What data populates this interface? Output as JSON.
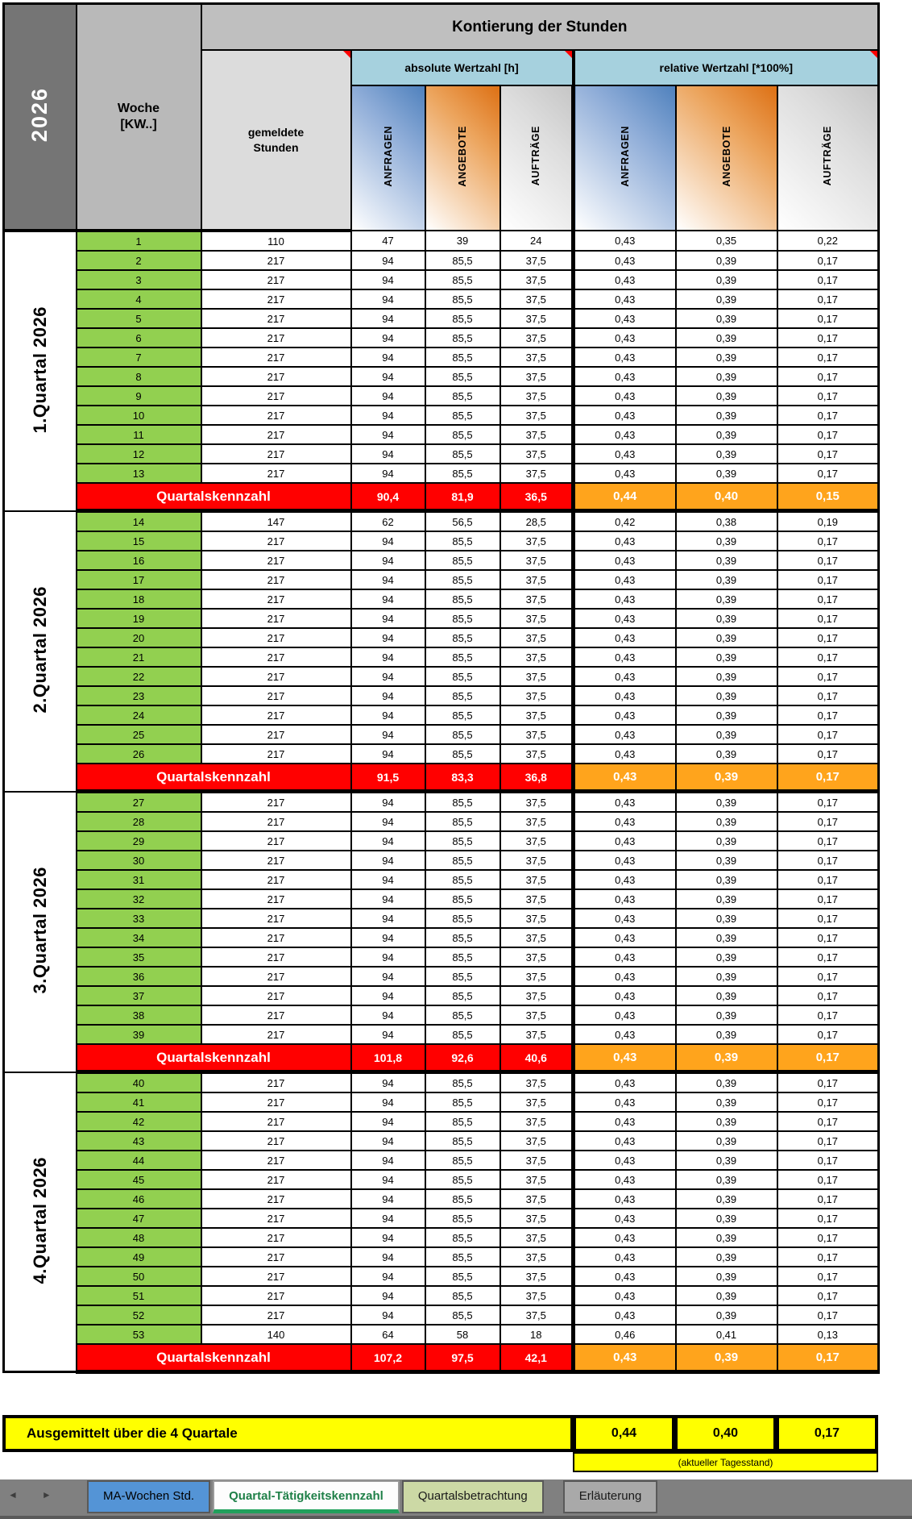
{
  "year": "2026",
  "header": {
    "title": "Kontierung der Stunden",
    "week_label": "Woche",
    "week_sub": "[KW..]",
    "reported": "gemeldete Stunden",
    "abs_group": "absolute Wertzahl [h]",
    "rel_group": "relative Wertzahl [*100%]",
    "metrics": [
      "ANFRAGEN",
      "ANGEBOTE",
      "AUFTRÄGE"
    ]
  },
  "quarters": [
    {
      "label": "1.Quartal 2026",
      "weeks": [
        [
          "1",
          "110",
          "47",
          "39",
          "24",
          "0,43",
          "0,35",
          "0,22"
        ],
        [
          "2",
          "217",
          "94",
          "85,5",
          "37,5",
          "0,43",
          "0,39",
          "0,17"
        ],
        [
          "3",
          "217",
          "94",
          "85,5",
          "37,5",
          "0,43",
          "0,39",
          "0,17"
        ],
        [
          "4",
          "217",
          "94",
          "85,5",
          "37,5",
          "0,43",
          "0,39",
          "0,17"
        ],
        [
          "5",
          "217",
          "94",
          "85,5",
          "37,5",
          "0,43",
          "0,39",
          "0,17"
        ],
        [
          "6",
          "217",
          "94",
          "85,5",
          "37,5",
          "0,43",
          "0,39",
          "0,17"
        ],
        [
          "7",
          "217",
          "94",
          "85,5",
          "37,5",
          "0,43",
          "0,39",
          "0,17"
        ],
        [
          "8",
          "217",
          "94",
          "85,5",
          "37,5",
          "0,43",
          "0,39",
          "0,17"
        ],
        [
          "9",
          "217",
          "94",
          "85,5",
          "37,5",
          "0,43",
          "0,39",
          "0,17"
        ],
        [
          "10",
          "217",
          "94",
          "85,5",
          "37,5",
          "0,43",
          "0,39",
          "0,17"
        ],
        [
          "11",
          "217",
          "94",
          "85,5",
          "37,5",
          "0,43",
          "0,39",
          "0,17"
        ],
        [
          "12",
          "217",
          "94",
          "85,5",
          "37,5",
          "0,43",
          "0,39",
          "0,17"
        ],
        [
          "13",
          "217",
          "94",
          "85,5",
          "37,5",
          "0,43",
          "0,39",
          "0,17"
        ]
      ],
      "summary_label": "Quartalskennzahl",
      "summary_abs": [
        "90,4",
        "81,9",
        "36,5"
      ],
      "summary_rel": [
        "0,44",
        "0,40",
        "0,15"
      ]
    },
    {
      "label": "2.Quartal 2026",
      "weeks": [
        [
          "14",
          "147",
          "62",
          "56,5",
          "28,5",
          "0,42",
          "0,38",
          "0,19"
        ],
        [
          "15",
          "217",
          "94",
          "85,5",
          "37,5",
          "0,43",
          "0,39",
          "0,17"
        ],
        [
          "16",
          "217",
          "94",
          "85,5",
          "37,5",
          "0,43",
          "0,39",
          "0,17"
        ],
        [
          "17",
          "217",
          "94",
          "85,5",
          "37,5",
          "0,43",
          "0,39",
          "0,17"
        ],
        [
          "18",
          "217",
          "94",
          "85,5",
          "37,5",
          "0,43",
          "0,39",
          "0,17"
        ],
        [
          "19",
          "217",
          "94",
          "85,5",
          "37,5",
          "0,43",
          "0,39",
          "0,17"
        ],
        [
          "20",
          "217",
          "94",
          "85,5",
          "37,5",
          "0,43",
          "0,39",
          "0,17"
        ],
        [
          "21",
          "217",
          "94",
          "85,5",
          "37,5",
          "0,43",
          "0,39",
          "0,17"
        ],
        [
          "22",
          "217",
          "94",
          "85,5",
          "37,5",
          "0,43",
          "0,39",
          "0,17"
        ],
        [
          "23",
          "217",
          "94",
          "85,5",
          "37,5",
          "0,43",
          "0,39",
          "0,17"
        ],
        [
          "24",
          "217",
          "94",
          "85,5",
          "37,5",
          "0,43",
          "0,39",
          "0,17"
        ],
        [
          "25",
          "217",
          "94",
          "85,5",
          "37,5",
          "0,43",
          "0,39",
          "0,17"
        ],
        [
          "26",
          "217",
          "94",
          "85,5",
          "37,5",
          "0,43",
          "0,39",
          "0,17"
        ]
      ],
      "summary_label": "Quartalskennzahl",
      "summary_abs": [
        "91,5",
        "83,3",
        "36,8"
      ],
      "summary_rel": [
        "0,43",
        "0,39",
        "0,17"
      ]
    },
    {
      "label": "3.Quartal 2026",
      "weeks": [
        [
          "27",
          "217",
          "94",
          "85,5",
          "37,5",
          "0,43",
          "0,39",
          "0,17"
        ],
        [
          "28",
          "217",
          "94",
          "85,5",
          "37,5",
          "0,43",
          "0,39",
          "0,17"
        ],
        [
          "29",
          "217",
          "94",
          "85,5",
          "37,5",
          "0,43",
          "0,39",
          "0,17"
        ],
        [
          "30",
          "217",
          "94",
          "85,5",
          "37,5",
          "0,43",
          "0,39",
          "0,17"
        ],
        [
          "31",
          "217",
          "94",
          "85,5",
          "37,5",
          "0,43",
          "0,39",
          "0,17"
        ],
        [
          "32",
          "217",
          "94",
          "85,5",
          "37,5",
          "0,43",
          "0,39",
          "0,17"
        ],
        [
          "33",
          "217",
          "94",
          "85,5",
          "37,5",
          "0,43",
          "0,39",
          "0,17"
        ],
        [
          "34",
          "217",
          "94",
          "85,5",
          "37,5",
          "0,43",
          "0,39",
          "0,17"
        ],
        [
          "35",
          "217",
          "94",
          "85,5",
          "37,5",
          "0,43",
          "0,39",
          "0,17"
        ],
        [
          "36",
          "217",
          "94",
          "85,5",
          "37,5",
          "0,43",
          "0,39",
          "0,17"
        ],
        [
          "37",
          "217",
          "94",
          "85,5",
          "37,5",
          "0,43",
          "0,39",
          "0,17"
        ],
        [
          "38",
          "217",
          "94",
          "85,5",
          "37,5",
          "0,43",
          "0,39",
          "0,17"
        ],
        [
          "39",
          "217",
          "94",
          "85,5",
          "37,5",
          "0,43",
          "0,39",
          "0,17"
        ]
      ],
      "summary_label": "Quartalskennzahl",
      "summary_abs": [
        "101,8",
        "92,6",
        "40,6"
      ],
      "summary_rel": [
        "0,43",
        "0,39",
        "0,17"
      ]
    },
    {
      "label": "4.Quartal 2026",
      "weeks": [
        [
          "40",
          "217",
          "94",
          "85,5",
          "37,5",
          "0,43",
          "0,39",
          "0,17"
        ],
        [
          "41",
          "217",
          "94",
          "85,5",
          "37,5",
          "0,43",
          "0,39",
          "0,17"
        ],
        [
          "42",
          "217",
          "94",
          "85,5",
          "37,5",
          "0,43",
          "0,39",
          "0,17"
        ],
        [
          "43",
          "217",
          "94",
          "85,5",
          "37,5",
          "0,43",
          "0,39",
          "0,17"
        ],
        [
          "44",
          "217",
          "94",
          "85,5",
          "37,5",
          "0,43",
          "0,39",
          "0,17"
        ],
        [
          "45",
          "217",
          "94",
          "85,5",
          "37,5",
          "0,43",
          "0,39",
          "0,17"
        ],
        [
          "46",
          "217",
          "94",
          "85,5",
          "37,5",
          "0,43",
          "0,39",
          "0,17"
        ],
        [
          "47",
          "217",
          "94",
          "85,5",
          "37,5",
          "0,43",
          "0,39",
          "0,17"
        ],
        [
          "48",
          "217",
          "94",
          "85,5",
          "37,5",
          "0,43",
          "0,39",
          "0,17"
        ],
        [
          "49",
          "217",
          "94",
          "85,5",
          "37,5",
          "0,43",
          "0,39",
          "0,17"
        ],
        [
          "50",
          "217",
          "94",
          "85,5",
          "37,5",
          "0,43",
          "0,39",
          "0,17"
        ],
        [
          "51",
          "217",
          "94",
          "85,5",
          "37,5",
          "0,43",
          "0,39",
          "0,17"
        ],
        [
          "52",
          "217",
          "94",
          "85,5",
          "37,5",
          "0,43",
          "0,39",
          "0,17"
        ],
        [
          "53",
          "140",
          "64",
          "58",
          "18",
          "0,46",
          "0,41",
          "0,13"
        ]
      ],
      "summary_label": "Quartalskennzahl",
      "summary_abs": [
        "107,2",
        "97,5",
        "42,1"
      ],
      "summary_rel": [
        "0,43",
        "0,39",
        "0,17"
      ]
    }
  ],
  "footer": {
    "label": "Ausgemittelt über die 4 Quartale",
    "values": [
      "0,44",
      "0,40",
      "0,17"
    ],
    "note": "(aktueller Tagesstand)"
  },
  "tabbar": {
    "scroll_left": "◄",
    "scroll_right": "►",
    "tabs": [
      {
        "label": "MA-Wochen Std.",
        "style": "blue",
        "active": false
      },
      {
        "label": "Quartal-Tätigkeitskennzahl",
        "style": "active",
        "active": true
      },
      {
        "label": "Quartalsbetrachtung",
        "style": "green",
        "active": false
      },
      {
        "label": "Erläuterung",
        "style": "gray",
        "active": false
      }
    ]
  },
  "colors": {
    "week_green": "#92d050",
    "summary_red": "#ff0000",
    "summary_orange": "#ffa41c",
    "footer_yellow": "#ffff00",
    "group_cyan": "#a6d1de",
    "header_gray": "#bfbfbf",
    "year_gray": "#757575",
    "metric_blue": "#4f81bd",
    "metric_orange": "#dd7014",
    "tab_blue": "#5494d6",
    "tab_green_pale": "#ccd9a5",
    "tab_gray": "#a9a9a9",
    "active_tab_text": "#1f8048",
    "comment_marker": "#ff0000"
  }
}
